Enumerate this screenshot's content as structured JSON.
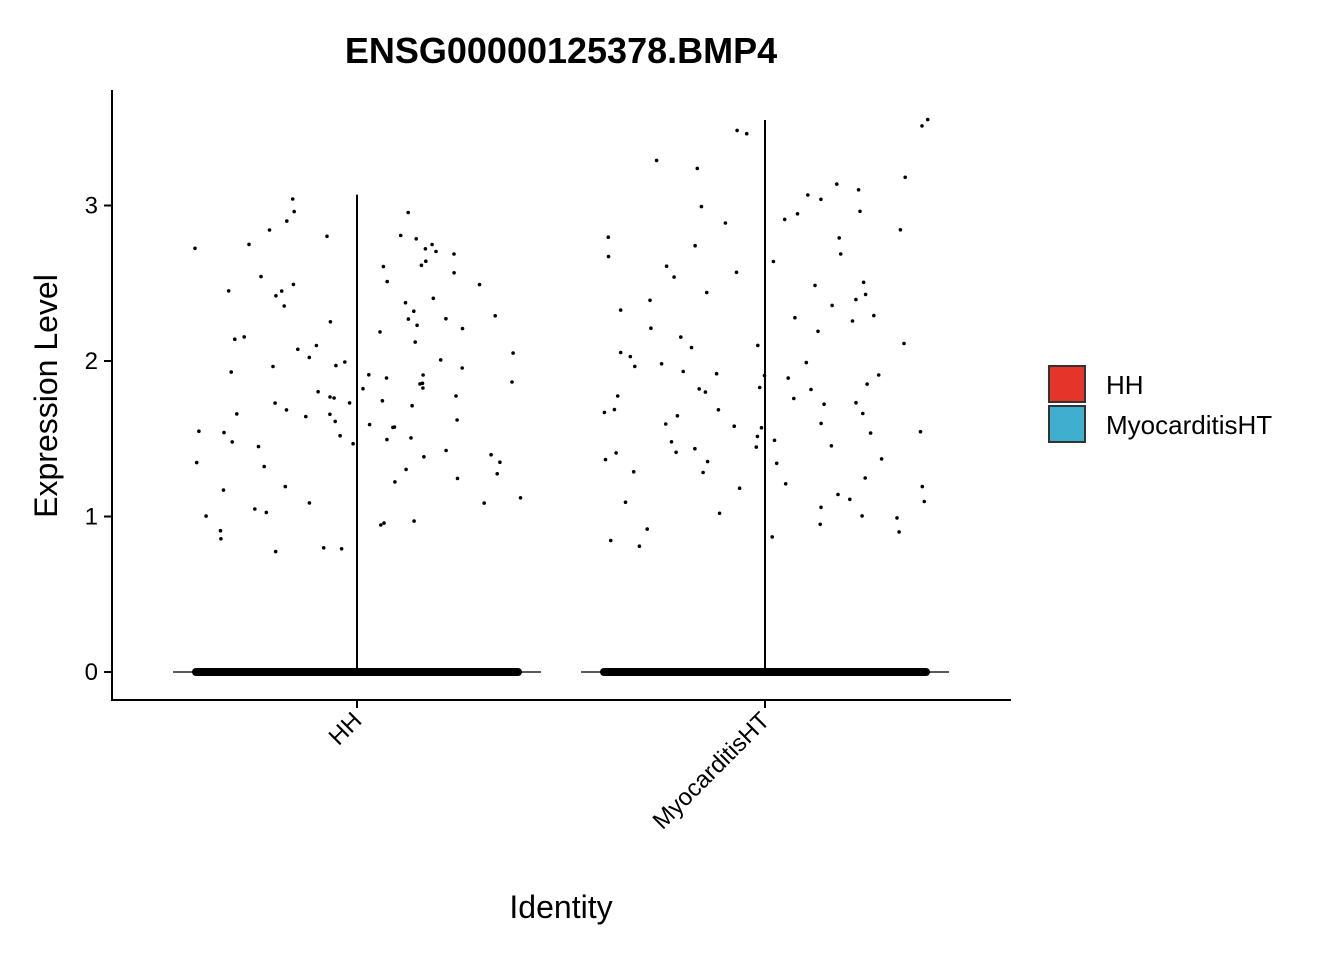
{
  "chart_data": {
    "type": "scatter",
    "subtype": "violin-jitter",
    "title": "ENSG00000125378.BMP4",
    "xlabel": "Identity",
    "ylabel": "Expression Level",
    "categories": [
      "HH",
      "MyocarditisHT"
    ],
    "yticks": [
      0,
      1,
      2,
      3
    ],
    "ylim": [
      -0.17,
      3.7
    ],
    "grid": false,
    "legend": {
      "placement": "right",
      "entries": [
        {
          "label": "HH",
          "color": "#E5352A"
        },
        {
          "label": "MyocarditisHT",
          "color": "#3FAECF"
        }
      ]
    },
    "series": [
      {
        "category": "HH",
        "color": "#E5352A",
        "max": 3.07,
        "zero_band": true,
        "values": [
          2.95,
          2.82,
          2.79,
          2.76,
          2.73,
          2.7,
          2.68,
          2.6,
          2.55,
          2.5,
          2.45,
          2.4,
          2.35,
          2.3,
          2.25,
          2.2,
          2.15,
          2.1,
          2.05,
          2.0,
          1.98,
          1.95,
          1.92,
          1.9,
          1.88,
          1.85,
          1.82,
          1.8,
          1.78,
          1.75,
          1.72,
          1.7,
          1.68,
          1.65,
          1.62,
          1.6,
          1.58,
          1.55,
          1.52,
          1.5,
          1.48,
          1.45,
          1.4,
          1.35,
          1.3,
          1.25,
          1.2,
          1.12,
          1.05,
          0.98,
          0.95,
          0.92,
          0.85,
          0.8,
          2.97,
          2.85,
          2.8,
          2.72,
          2.65,
          2.58,
          2.52,
          2.48,
          2.42,
          2.38,
          2.32,
          2.28,
          2.22,
          2.18,
          2.12,
          2.08,
          2.02,
          1.96,
          1.93,
          1.87,
          1.83,
          1.77,
          1.73,
          1.67,
          1.63,
          1.57,
          1.53,
          1.47,
          1.43,
          1.38,
          1.32,
          1.27,
          1.18,
          1.1,
          1.02,
          0.97,
          0.78,
          3.05,
          2.9,
          2.75,
          2.62,
          2.44,
          2.26,
          2.14,
          1.99,
          1.86,
          1.74,
          1.61,
          1.49,
          1.36,
          1.22,
          1.08,
          1.0,
          0.81
        ]
      },
      {
        "category": "MyocarditisHT",
        "color": "#3FAECF",
        "max": 3.55,
        "zero_band": true,
        "values": [
          3.5,
          3.48,
          3.3,
          3.25,
          3.15,
          3.1,
          3.05,
          3.0,
          2.95,
          2.9,
          2.85,
          2.8,
          2.75,
          2.7,
          2.65,
          2.6,
          2.55,
          2.5,
          2.45,
          2.4,
          2.35,
          2.3,
          2.25,
          2.2,
          2.15,
          2.1,
          2.05,
          2.0,
          1.97,
          1.94,
          1.91,
          1.88,
          1.85,
          1.82,
          1.79,
          1.76,
          1.73,
          1.7,
          1.67,
          1.64,
          1.61,
          1.58,
          1.55,
          1.52,
          1.49,
          1.46,
          1.43,
          1.4,
          1.37,
          1.34,
          1.3,
          1.25,
          1.2,
          1.15,
          1.1,
          1.05,
          1.0,
          0.95,
          0.9,
          0.85,
          0.8,
          3.55,
          3.45,
          3.18,
          3.08,
          2.97,
          2.88,
          2.78,
          2.68,
          2.58,
          2.48,
          2.38,
          2.28,
          2.18,
          2.08,
          2.02,
          1.96,
          1.9,
          1.84,
          1.78,
          1.72,
          1.66,
          1.6,
          1.54,
          1.48,
          1.42,
          1.36,
          1.28,
          1.18,
          1.08,
          0.98,
          0.88,
          2.42,
          2.32,
          2.12,
          1.93,
          1.81,
          1.69,
          1.57,
          1.45,
          1.33,
          1.22,
          1.12,
          1.02,
          0.92
        ]
      }
    ]
  }
}
